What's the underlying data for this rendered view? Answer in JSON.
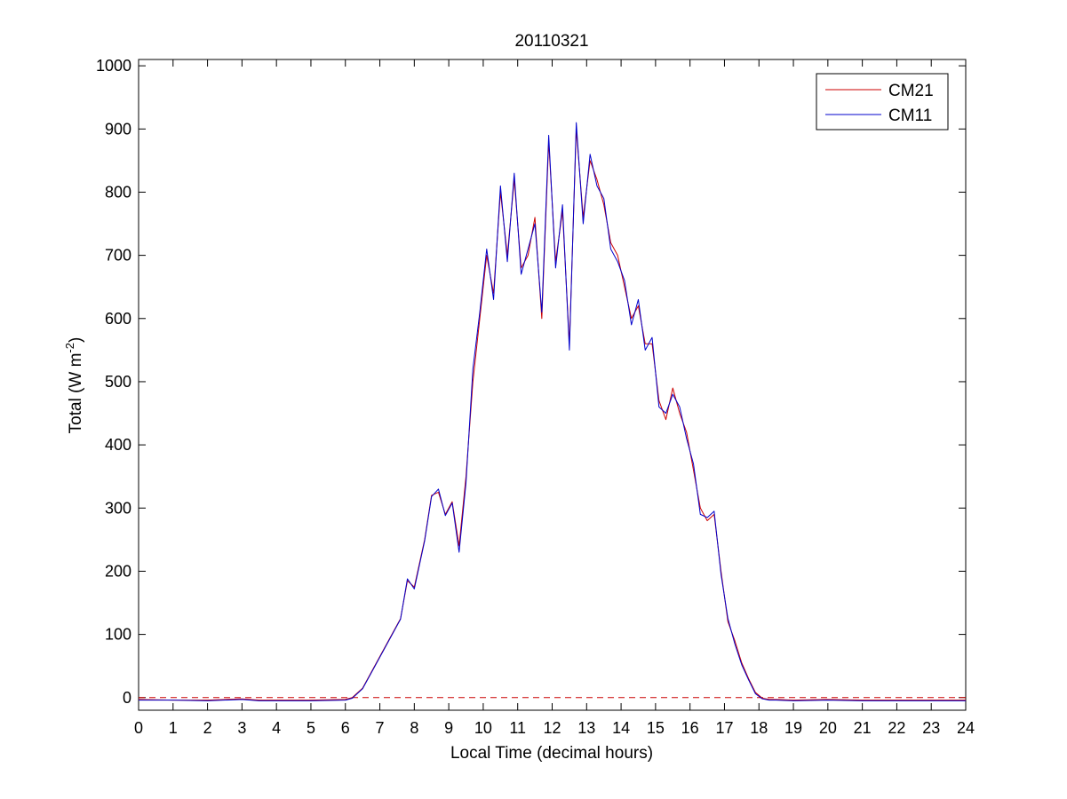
{
  "chart_data": {
    "type": "line",
    "title": "20110321",
    "xlabel": "Local Time (decimal hours)",
    "ylabel": "Total (W m",
    "ylabel_sup": "-2",
    "ylabel_end": ")",
    "xlim": [
      0,
      24
    ],
    "ylim": [
      -20,
      1010
    ],
    "xticks": [
      0,
      1,
      2,
      3,
      4,
      5,
      6,
      7,
      8,
      9,
      10,
      11,
      12,
      13,
      14,
      15,
      16,
      17,
      18,
      19,
      20,
      21,
      22,
      23,
      24
    ],
    "yticks": [
      0,
      100,
      200,
      300,
      400,
      500,
      600,
      700,
      800,
      900,
      1000
    ],
    "grid": false,
    "legend_position": "top-right",
    "reference_line": {
      "y": 0,
      "style": "dashed",
      "color": "#cc0000"
    },
    "colors": {
      "CM21": "#cc0000",
      "CM11": "#0000cc"
    },
    "series": [
      {
        "name": "CM21",
        "color": "#cc0000",
        "x": [
          0,
          1,
          2,
          3,
          3.5,
          4,
          5,
          6,
          6.2,
          6.5,
          6.8,
          7,
          7.3,
          7.6,
          7.8,
          8,
          8.3,
          8.5,
          8.7,
          8.9,
          9.1,
          9.3,
          9.5,
          9.7,
          9.9,
          10.1,
          10.3,
          10.5,
          10.7,
          10.9,
          11.1,
          11.3,
          11.5,
          11.7,
          11.9,
          12.1,
          12.3,
          12.5,
          12.7,
          12.9,
          13.1,
          13.3,
          13.5,
          13.7,
          13.9,
          14.1,
          14.3,
          14.5,
          14.7,
          14.9,
          15.1,
          15.3,
          15.5,
          15.7,
          15.9,
          16.1,
          16.3,
          16.5,
          16.7,
          16.9,
          17.1,
          17.3,
          17.5,
          17.7,
          17.9,
          18.1,
          18.3,
          18.5,
          19,
          20,
          21,
          22,
          23,
          24
        ],
        "y": [
          -3,
          -4,
          -4,
          -2,
          -4,
          -4,
          -4,
          -3,
          0,
          15,
          45,
          65,
          95,
          125,
          185,
          175,
          250,
          320,
          325,
          290,
          310,
          240,
          350,
          500,
          600,
          700,
          640,
          800,
          700,
          820,
          680,
          700,
          760,
          600,
          880,
          690,
          770,
          560,
          900,
          760,
          850,
          820,
          780,
          720,
          700,
          650,
          600,
          620,
          560,
          560,
          470,
          440,
          490,
          450,
          420,
          360,
          300,
          280,
          290,
          200,
          120,
          90,
          55,
          30,
          8,
          -1,
          -3,
          -3,
          -4,
          -3,
          -4,
          -4,
          -4,
          -4
        ]
      },
      {
        "name": "CM11",
        "color": "#0000cc",
        "x": [
          0,
          1,
          2,
          3,
          3.5,
          4,
          5,
          6,
          6.2,
          6.5,
          6.8,
          7,
          7.3,
          7.6,
          7.8,
          8,
          8.3,
          8.5,
          8.7,
          8.9,
          9.1,
          9.3,
          9.5,
          9.7,
          9.9,
          10.1,
          10.3,
          10.5,
          10.7,
          10.9,
          11.1,
          11.3,
          11.5,
          11.7,
          11.9,
          12.1,
          12.3,
          12.5,
          12.7,
          12.9,
          13.1,
          13.3,
          13.5,
          13.7,
          13.9,
          14.1,
          14.3,
          14.5,
          14.7,
          14.9,
          15.1,
          15.3,
          15.5,
          15.7,
          15.9,
          16.1,
          16.3,
          16.5,
          16.7,
          16.9,
          17.1,
          17.3,
          17.5,
          17.7,
          17.9,
          18.1,
          18.3,
          18.5,
          19,
          20,
          21,
          22,
          23,
          24
        ],
        "y": [
          -4,
          -4,
          -5,
          -3,
          -5,
          -5,
          -5,
          -4,
          -1,
          14,
          44,
          64,
          94,
          124,
          188,
          172,
          248,
          318,
          330,
          288,
          308,
          230,
          340,
          520,
          610,
          710,
          630,
          810,
          690,
          830,
          670,
          710,
          750,
          610,
          890,
          680,
          780,
          550,
          910,
          750,
          860,
          810,
          790,
          710,
          690,
          660,
          590,
          630,
          550,
          570,
          460,
          450,
          480,
          460,
          410,
          370,
          290,
          285,
          295,
          195,
          125,
          85,
          52,
          28,
          6,
          -2,
          -4,
          -4,
          -5,
          -4,
          -5,
          -5,
          -5,
          -5
        ]
      }
    ]
  }
}
